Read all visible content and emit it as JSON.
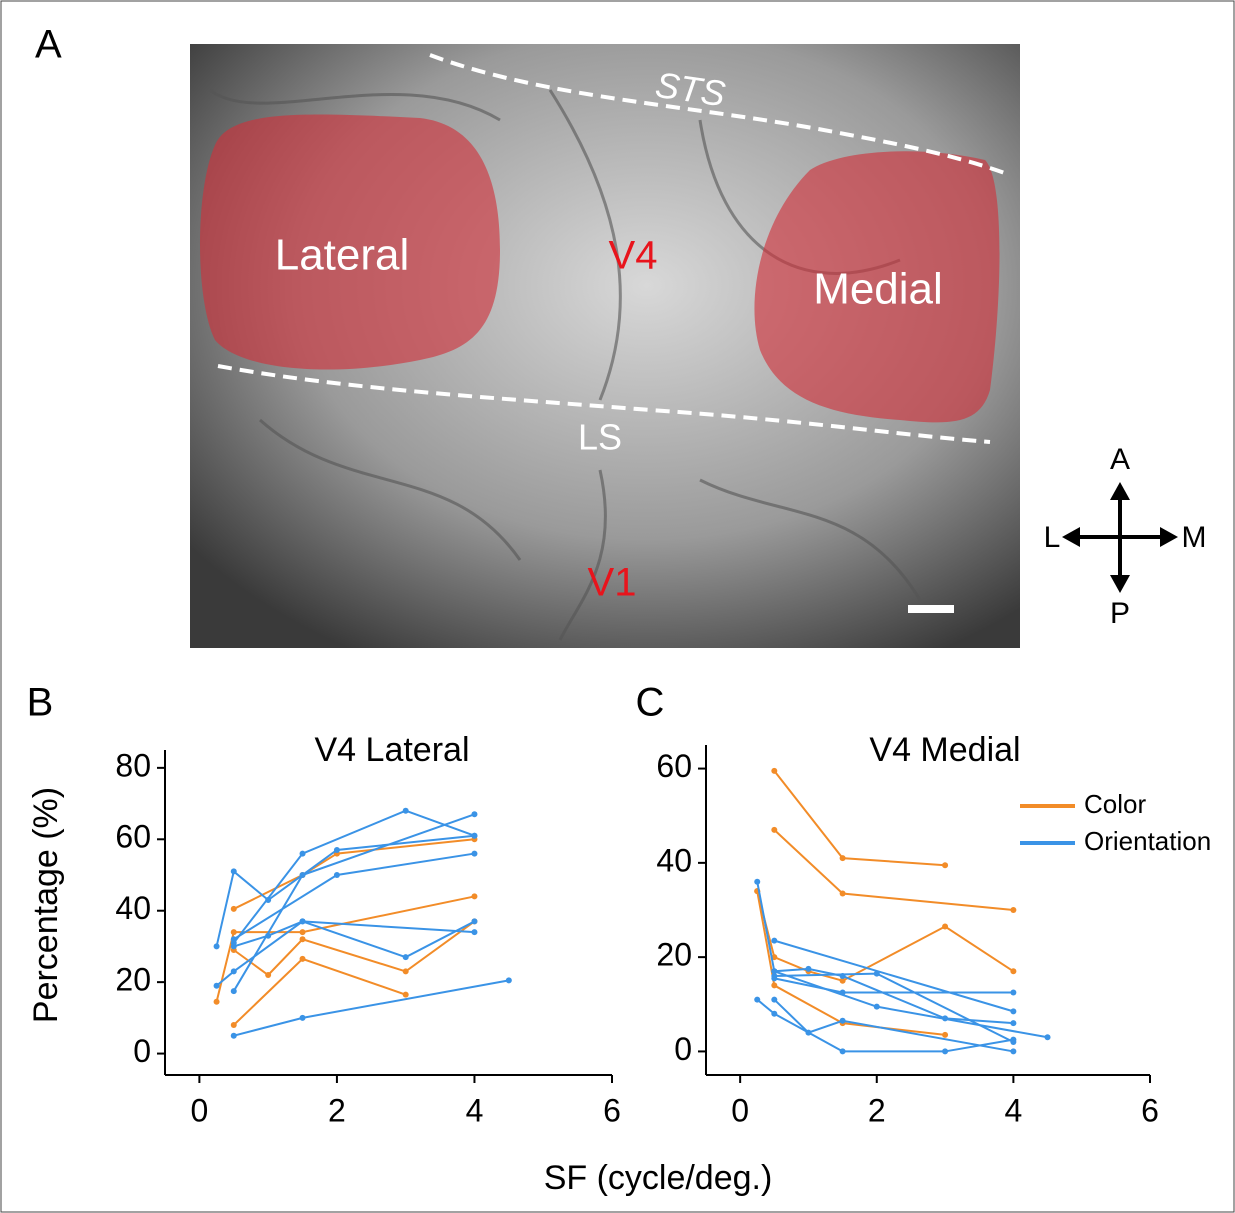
{
  "panel_a": {
    "label": "A",
    "sulci": [
      "STS",
      "LS"
    ],
    "regions": [
      "Lateral",
      "Medial"
    ],
    "areas": [
      "V4",
      "V1"
    ]
  },
  "compass": {
    "anterior": "A",
    "posterior": "P",
    "lateral": "L",
    "medial": "M"
  },
  "shared_xlabel": "SF (cycle/deg.)",
  "chart_data": [
    {
      "type": "line",
      "panel_label": "B",
      "title": "V4 Lateral",
      "ylabel": "Percentage (%)",
      "xlim": [
        -0.5,
        6
      ],
      "ylim": [
        -6,
        85
      ],
      "xticks": [
        0,
        2,
        4,
        6
      ],
      "yticks": [
        0,
        20,
        40,
        60,
        80
      ],
      "series": [
        {
          "color": "#f28c28",
          "x": [
            0.5,
            1.5,
            2,
            4
          ],
          "values": [
            40.5,
            50,
            56,
            60
          ]
        },
        {
          "color": "#f28c28",
          "x": [
            0.25,
            0.5,
            1.5,
            4
          ],
          "values": [
            14.5,
            34,
            34,
            44
          ]
        },
        {
          "color": "#f28c28",
          "x": [
            0.5,
            1,
            1.5,
            3,
            4
          ],
          "values": [
            29,
            22,
            32,
            23,
            37
          ]
        },
        {
          "color": "#f28c28",
          "x": [
            0.5,
            1.5,
            3
          ],
          "values": [
            8,
            26.5,
            16.5
          ]
        },
        {
          "color": "#3a93e6",
          "x": [
            0.25,
            0.5,
            1,
            2,
            4
          ],
          "values": [
            30,
            51,
            43,
            57,
            61
          ]
        },
        {
          "color": "#3a93e6",
          "x": [
            0.25,
            0.5,
            1.5,
            4
          ],
          "values": [
            19,
            23,
            37,
            34
          ]
        },
        {
          "color": "#3a93e6",
          "x": [
            0.5,
            1.5,
            3,
            4
          ],
          "values": [
            31,
            56,
            68,
            61
          ]
        },
        {
          "color": "#3a93e6",
          "x": [
            0.5,
            1,
            1.5,
            3,
            4
          ],
          "values": [
            30,
            33,
            37,
            27,
            37
          ]
        },
        {
          "color": "#3a93e6",
          "x": [
            0.5,
            1.5,
            4
          ],
          "values": [
            17.5,
            50,
            67
          ]
        },
        {
          "color": "#3a93e6",
          "x": [
            0.5,
            1.5,
            4.5
          ],
          "values": [
            5,
            10,
            20.5
          ]
        },
        {
          "color": "#3a93e6",
          "x": [
            0.5,
            2,
            4
          ],
          "values": [
            32,
            50,
            56
          ]
        }
      ]
    },
    {
      "type": "line",
      "panel_label": "C",
      "title": "V4 Medial",
      "xlim": [
        -0.5,
        6
      ],
      "ylim": [
        -5,
        65
      ],
      "xticks": [
        0,
        2,
        4,
        6
      ],
      "yticks": [
        0,
        20,
        40,
        60
      ],
      "legend": [
        {
          "label": "Color",
          "color": "#f28c28"
        },
        {
          "label": "Orientation",
          "color": "#3a93e6"
        }
      ],
      "series": [
        {
          "color": "#f28c28",
          "x": [
            0.5,
            1.5,
            3
          ],
          "values": [
            59.5,
            41,
            39.5
          ]
        },
        {
          "color": "#f28c28",
          "x": [
            0.5,
            1.5,
            4
          ],
          "values": [
            47,
            33.5,
            30
          ]
        },
        {
          "color": "#f28c28",
          "x": [
            0.25,
            0.5,
            1,
            1.5,
            3,
            4
          ],
          "values": [
            34,
            20,
            17,
            15,
            26.5,
            17
          ]
        },
        {
          "color": "#f28c28",
          "x": [
            0.25,
            0.5,
            1.5,
            3
          ],
          "values": [
            34,
            14,
            6,
            3.5
          ]
        },
        {
          "color": "#3a93e6",
          "x": [
            0.25,
            0.5,
            1,
            1.5,
            3,
            4
          ],
          "values": [
            36,
            17,
            17.5,
            16,
            7,
            6
          ]
        },
        {
          "color": "#3a93e6",
          "x": [
            0.5,
            4
          ],
          "values": [
            23.5,
            8.5
          ]
        },
        {
          "color": "#3a93e6",
          "x": [
            0.5,
            2,
            4
          ],
          "values": [
            16,
            16.5,
            2
          ]
        },
        {
          "color": "#3a93e6",
          "x": [
            0.5,
            1.5,
            4
          ],
          "values": [
            15.5,
            12.5,
            12.5
          ]
        },
        {
          "color": "#3a93e6",
          "x": [
            0.25,
            0.5,
            1.5,
            3,
            4
          ],
          "values": [
            11,
            8,
            0,
            0,
            2.5
          ]
        },
        {
          "color": "#3a93e6",
          "x": [
            0.5,
            1,
            1.5,
            4
          ],
          "values": [
            11,
            4,
            6.5,
            0
          ]
        },
        {
          "color": "#3a93e6",
          "x": [
            0.5,
            2,
            4.5
          ],
          "values": [
            17,
            9.5,
            3
          ]
        }
      ]
    }
  ]
}
